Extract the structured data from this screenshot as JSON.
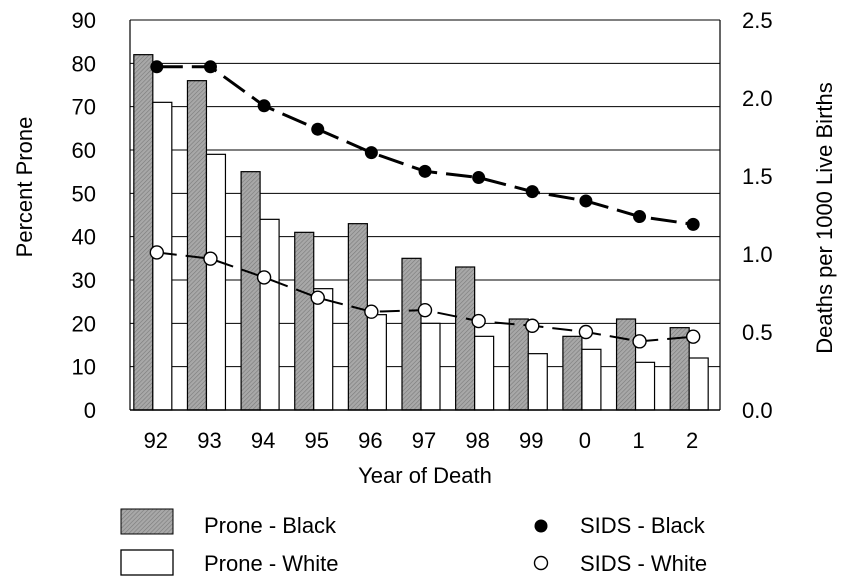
{
  "chart_data": {
    "type": "bar",
    "xlabel": "Year of Death",
    "ylabel_left": "Percent Prone",
    "ylabel_right": "Deaths per 1000 Live Births",
    "categories": [
      "92",
      "93",
      "94",
      "95",
      "96",
      "97",
      "98",
      "99",
      "0",
      "1",
      "2"
    ],
    "ylim_left": [
      0,
      90
    ],
    "yticks_left": [
      "0",
      "10",
      "20",
      "30",
      "40",
      "50",
      "60",
      "70",
      "80",
      "90"
    ],
    "ylim_right": [
      0,
      2.5
    ],
    "yticks_right": [
      "0.0",
      "0.5",
      "1.0",
      "1.5",
      "2.0",
      "2.5"
    ],
    "grid": true,
    "legend_position": "bottom",
    "bar_series": [
      {
        "name": "Prone - Black",
        "color": "#9a9a9a",
        "pattern": "hatched",
        "values": [
          82,
          76,
          55,
          41,
          43,
          35,
          33,
          21,
          17,
          21,
          19
        ]
      },
      {
        "name": "Prone - White",
        "color": "#ffffff",
        "pattern": "open",
        "values": [
          71,
          59,
          44,
          28,
          22,
          20,
          17,
          13,
          14,
          11,
          12
        ]
      }
    ],
    "line_series": [
      {
        "name": "SIDS - Black",
        "marker": "filled-circle",
        "color": "#000000",
        "values": [
          2.2,
          2.2,
          1.95,
          1.8,
          1.65,
          1.53,
          1.49,
          1.4,
          1.34,
          1.24,
          1.19
        ]
      },
      {
        "name": "SIDS - White",
        "marker": "open-circle",
        "color": "#000000",
        "values": [
          1.01,
          0.97,
          0.85,
          0.72,
          0.63,
          0.64,
          0.57,
          0.54,
          0.5,
          0.44,
          0.47
        ]
      }
    ]
  }
}
